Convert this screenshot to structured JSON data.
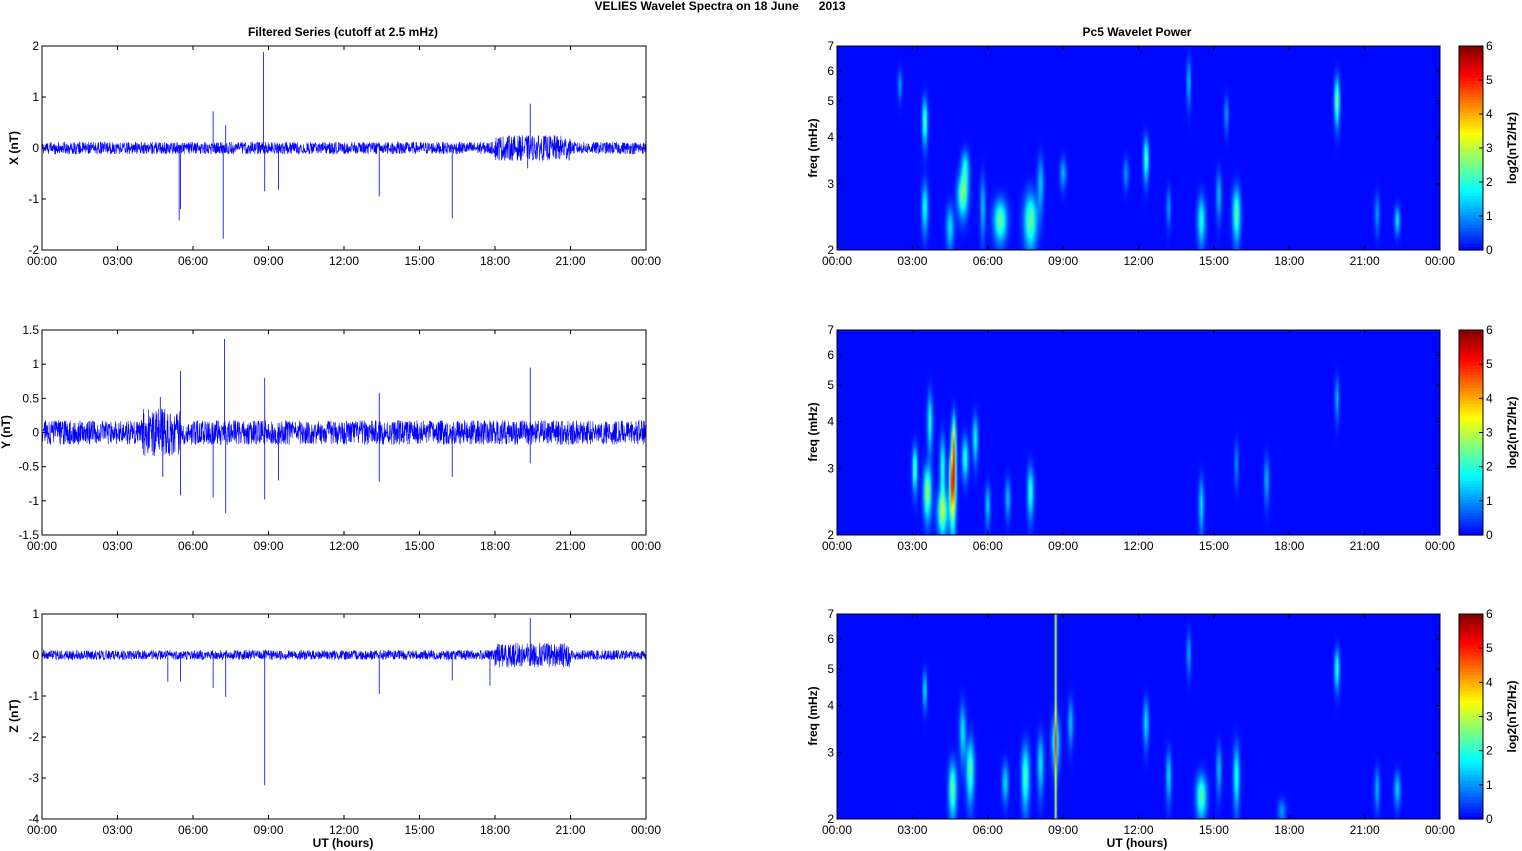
{
  "figure": {
    "title": "VELIES Wavelet Spectra on 18 June      2013"
  },
  "colors": {
    "trace": "#0000ff",
    "axis": "#000000",
    "background": "#00008f"
  },
  "chart_data": [
    {
      "type": "line",
      "title": "Filtered Series (cutoff at 2.5 mHz)",
      "xlabel": "",
      "ylabel": "X (nT)",
      "xlim": [
        "00:00",
        "24:00"
      ],
      "xticks": [
        "00:00",
        "03:00",
        "06:00",
        "09:00",
        "12:00",
        "15:00",
        "18:00",
        "21:00",
        "00:00"
      ],
      "ylim": [
        -2,
        2
      ],
      "yticks": [
        "-2",
        "-1",
        "0",
        "1",
        "2"
      ],
      "noise_amplitude": 0.12,
      "burst": {
        "from_hour": 18,
        "to_hour": 21,
        "amplitude": 0.25
      },
      "spikes": [
        [
          5.45,
          -1.42
        ],
        [
          5.5,
          -1.2
        ],
        [
          6.8,
          0.72
        ],
        [
          7.2,
          -1.78
        ],
        [
          7.3,
          0.45
        ],
        [
          8.8,
          1.88
        ],
        [
          8.85,
          -0.85
        ],
        [
          9.4,
          -0.82
        ],
        [
          13.4,
          -0.95
        ],
        [
          16.3,
          -1.38
        ],
        [
          19.4,
          0.87
        ],
        [
          19.3,
          -0.4
        ]
      ]
    },
    {
      "type": "line",
      "title": "",
      "xlabel": "",
      "ylabel": "Y (nT)",
      "xlim": [
        "00:00",
        "24:00"
      ],
      "xticks": [
        "00:00",
        "03:00",
        "06:00",
        "09:00",
        "12:00",
        "15:00",
        "18:00",
        "21:00",
        "00:00"
      ],
      "ylim": [
        -1.5,
        1.5
      ],
      "yticks": [
        "-1.5",
        "-1",
        "-0.5",
        "0",
        "0.5",
        "1",
        "1.5"
      ],
      "noise_amplitude": 0.18,
      "burst": {
        "from_hour": 4.0,
        "to_hour": 5.5,
        "amplitude": 0.35
      },
      "spikes": [
        [
          4.7,
          0.52
        ],
        [
          4.8,
          -0.65
        ],
        [
          5.5,
          0.9
        ],
        [
          5.5,
          -0.92
        ],
        [
          6.8,
          -0.95
        ],
        [
          7.25,
          1.37
        ],
        [
          7.3,
          -1.18
        ],
        [
          8.85,
          0.8
        ],
        [
          8.85,
          -0.98
        ],
        [
          9.4,
          -0.7
        ],
        [
          13.4,
          0.58
        ],
        [
          13.4,
          -0.72
        ],
        [
          16.3,
          -0.65
        ],
        [
          19.4,
          0.95
        ],
        [
          19.4,
          -0.45
        ]
      ]
    },
    {
      "type": "line",
      "title": "",
      "xlabel": "UT (hours)",
      "ylabel": "Z (nT)",
      "xlim": [
        "00:00",
        "24:00"
      ],
      "xticks": [
        "00:00",
        "03:00",
        "06:00",
        "09:00",
        "12:00",
        "15:00",
        "18:00",
        "21:00",
        "00:00"
      ],
      "ylim": [
        -4,
        1
      ],
      "yticks": [
        "-4",
        "-3",
        "-2",
        "-1",
        "0",
        "1"
      ],
      "noise_amplitude": 0.12,
      "burst": {
        "from_hour": 18,
        "to_hour": 21,
        "amplitude": 0.3
      },
      "spikes": [
        [
          5.0,
          -0.65
        ],
        [
          5.5,
          -0.65
        ],
        [
          6.8,
          -0.8
        ],
        [
          7.3,
          -1.02
        ],
        [
          8.85,
          -3.18
        ],
        [
          13.4,
          -0.95
        ],
        [
          16.3,
          -0.62
        ],
        [
          17.8,
          -0.75
        ],
        [
          19.4,
          0.9
        ]
      ]
    },
    {
      "type": "heatmap",
      "title": "Pc5 Wavelet Power",
      "xlabel": "",
      "ylabel": "freq (mHz)",
      "colorbar_label": "log2(nT2/Hz)",
      "colorbar_ticks": [
        "0",
        "1",
        "2",
        "3",
        "4",
        "5",
        "6"
      ],
      "clim": [
        0,
        6
      ],
      "xlim": [
        "00:00",
        "24:00"
      ],
      "xticks": [
        "00:00",
        "03:00",
        "06:00",
        "09:00",
        "12:00",
        "15:00",
        "18:00",
        "21:00",
        "00:00"
      ],
      "ylim_mhz": [
        2,
        7
      ],
      "yscale": "log",
      "yticks": [
        "2",
        "3",
        "4",
        "5",
        "6",
        "7"
      ],
      "blobs": [
        {
          "t": 2.5,
          "f": 5.5,
          "dt": 0.08,
          "df": 0.5,
          "p": 1.1
        },
        {
          "t": 3.5,
          "f": 4.4,
          "dt": 0.1,
          "df": 0.6,
          "p": 2.3
        },
        {
          "t": 3.5,
          "f": 2.6,
          "dt": 0.12,
          "df": 0.4,
          "p": 1.8
        },
        {
          "t": 4.5,
          "f": 2.3,
          "dt": 0.15,
          "df": 0.3,
          "p": 1.5
        },
        {
          "t": 5.0,
          "f": 2.8,
          "dt": 0.2,
          "df": 0.35,
          "p": 2.5
        },
        {
          "t": 5.1,
          "f": 3.3,
          "dt": 0.15,
          "df": 0.35,
          "p": 1.8
        },
        {
          "t": 5.8,
          "f": 2.6,
          "dt": 0.1,
          "df": 0.5,
          "p": 1.3
        },
        {
          "t": 6.5,
          "f": 2.4,
          "dt": 0.25,
          "df": 0.3,
          "p": 2.4
        },
        {
          "t": 7.7,
          "f": 2.4,
          "dt": 0.25,
          "df": 0.4,
          "p": 2.4
        },
        {
          "t": 8.1,
          "f": 3.0,
          "dt": 0.12,
          "df": 0.5,
          "p": 1.3
        },
        {
          "t": 9.0,
          "f": 3.2,
          "dt": 0.12,
          "df": 0.3,
          "p": 1.2
        },
        {
          "t": 11.5,
          "f": 3.2,
          "dt": 0.1,
          "df": 0.3,
          "p": 1.0
        },
        {
          "t": 12.3,
          "f": 3.5,
          "dt": 0.1,
          "df": 0.45,
          "p": 2.3
        },
        {
          "t": 13.2,
          "f": 2.6,
          "dt": 0.08,
          "df": 0.3,
          "p": 1.1
        },
        {
          "t": 14.0,
          "f": 5.6,
          "dt": 0.08,
          "df": 0.8,
          "p": 1.3
        },
        {
          "t": 14.5,
          "f": 2.4,
          "dt": 0.15,
          "df": 0.35,
          "p": 1.9
        },
        {
          "t": 15.2,
          "f": 2.8,
          "dt": 0.1,
          "df": 0.4,
          "p": 1.3
        },
        {
          "t": 15.5,
          "f": 4.6,
          "dt": 0.08,
          "df": 0.5,
          "p": 1.1
        },
        {
          "t": 15.9,
          "f": 2.5,
          "dt": 0.15,
          "df": 0.4,
          "p": 2.3
        },
        {
          "t": 19.9,
          "f": 5.0,
          "dt": 0.1,
          "df": 0.7,
          "p": 2.6
        },
        {
          "t": 21.5,
          "f": 2.5,
          "dt": 0.1,
          "df": 0.3,
          "p": 1.0
        },
        {
          "t": 22.3,
          "f": 2.4,
          "dt": 0.1,
          "df": 0.2,
          "p": 1.6
        }
      ]
    },
    {
      "type": "heatmap",
      "title": "",
      "xlabel": "",
      "ylabel": "freq (mHz)",
      "colorbar_label": "log2(nT2/Hz)",
      "colorbar_ticks": [
        "0",
        "1",
        "2",
        "3",
        "4",
        "5",
        "6"
      ],
      "clim": [
        0,
        6
      ],
      "xlim": [
        "00:00",
        "24:00"
      ],
      "xticks": [
        "00:00",
        "03:00",
        "06:00",
        "09:00",
        "12:00",
        "15:00",
        "18:00",
        "21:00",
        "00:00"
      ],
      "ylim_mhz": [
        2,
        7
      ],
      "yscale": "log",
      "yticks": [
        "2",
        "3",
        "4",
        "5",
        "6",
        "7"
      ],
      "blobs": [
        {
          "t": 3.1,
          "f": 3.0,
          "dt": 0.1,
          "df": 0.4,
          "p": 2.3
        },
        {
          "t": 3.6,
          "f": 2.6,
          "dt": 0.15,
          "df": 0.4,
          "p": 2.8
        },
        {
          "t": 3.7,
          "f": 4.0,
          "dt": 0.1,
          "df": 0.7,
          "p": 1.9
        },
        {
          "t": 4.2,
          "f": 2.3,
          "dt": 0.2,
          "df": 0.3,
          "p": 2.6
        },
        {
          "t": 4.2,
          "f": 3.0,
          "dt": 0.1,
          "df": 0.6,
          "p": 2.0
        },
        {
          "t": 4.6,
          "f": 2.7,
          "dt": 0.12,
          "df": 0.6,
          "p": 4.9
        },
        {
          "t": 4.65,
          "f": 3.5,
          "dt": 0.08,
          "df": 0.6,
          "p": 3.6
        },
        {
          "t": 5.1,
          "f": 3.2,
          "dt": 0.12,
          "df": 0.4,
          "p": 2.0
        },
        {
          "t": 5.5,
          "f": 3.6,
          "dt": 0.1,
          "df": 0.5,
          "p": 1.8
        },
        {
          "t": 6.0,
          "f": 2.4,
          "dt": 0.1,
          "df": 0.3,
          "p": 1.4
        },
        {
          "t": 6.8,
          "f": 2.5,
          "dt": 0.1,
          "df": 0.3,
          "p": 1.3
        },
        {
          "t": 7.7,
          "f": 2.6,
          "dt": 0.12,
          "df": 0.4,
          "p": 2.0
        },
        {
          "t": 14.5,
          "f": 2.4,
          "dt": 0.1,
          "df": 0.4,
          "p": 1.5
        },
        {
          "t": 15.9,
          "f": 3.1,
          "dt": 0.08,
          "df": 0.4,
          "p": 1.0
        },
        {
          "t": 17.1,
          "f": 2.8,
          "dt": 0.1,
          "df": 0.4,
          "p": 1.2
        },
        {
          "t": 19.9,
          "f": 4.6,
          "dt": 0.08,
          "df": 0.6,
          "p": 1.2
        }
      ]
    },
    {
      "type": "heatmap",
      "title": "",
      "xlabel": "UT (hours)",
      "ylabel": "freq (mHz)",
      "colorbar_label": "log2(nT2/Hz)",
      "colorbar_ticks": [
        "0",
        "1",
        "2",
        "3",
        "4",
        "5",
        "6"
      ],
      "clim": [
        0,
        6
      ],
      "xlim": [
        "00:00",
        "24:00"
      ],
      "xticks": [
        "00:00",
        "03:00",
        "06:00",
        "09:00",
        "12:00",
        "15:00",
        "18:00",
        "21:00",
        "00:00"
      ],
      "ylim_mhz": [
        2,
        7
      ],
      "yscale": "log",
      "yticks": [
        "2",
        "3",
        "4",
        "5",
        "6",
        "7"
      ],
      "blobs": [
        {
          "t": 3.5,
          "f": 4.4,
          "dt": 0.08,
          "df": 0.5,
          "p": 1.6
        },
        {
          "t": 4.6,
          "f": 2.4,
          "dt": 0.15,
          "df": 0.4,
          "p": 2.4
        },
        {
          "t": 5.0,
          "f": 3.4,
          "dt": 0.12,
          "df": 0.6,
          "p": 1.6
        },
        {
          "t": 5.3,
          "f": 2.7,
          "dt": 0.15,
          "df": 0.5,
          "p": 2.3
        },
        {
          "t": 6.7,
          "f": 2.5,
          "dt": 0.12,
          "df": 0.3,
          "p": 1.5
        },
        {
          "t": 7.5,
          "f": 2.6,
          "dt": 0.15,
          "df": 0.5,
          "p": 2.2
        },
        {
          "t": 8.1,
          "f": 2.8,
          "dt": 0.12,
          "df": 0.5,
          "p": 1.6
        },
        {
          "t": 8.7,
          "f": 3.2,
          "dt": 0.15,
          "df": 0.5,
          "p": 2.0
        },
        {
          "t": 9.3,
          "f": 3.6,
          "dt": 0.1,
          "df": 0.5,
          "p": 1.3
        },
        {
          "t": 12.3,
          "f": 3.6,
          "dt": 0.1,
          "df": 0.5,
          "p": 1.6
        },
        {
          "t": 13.2,
          "f": 2.6,
          "dt": 0.1,
          "df": 0.4,
          "p": 1.5
        },
        {
          "t": 14.0,
          "f": 5.5,
          "dt": 0.08,
          "df": 0.7,
          "p": 1.2
        },
        {
          "t": 14.5,
          "f": 2.3,
          "dt": 0.2,
          "df": 0.3,
          "p": 2.3
        },
        {
          "t": 15.2,
          "f": 2.7,
          "dt": 0.1,
          "df": 0.4,
          "p": 1.3
        },
        {
          "t": 15.9,
          "f": 2.6,
          "dt": 0.12,
          "df": 0.5,
          "p": 1.9
        },
        {
          "t": 17.7,
          "f": 2.1,
          "dt": 0.15,
          "df": 0.15,
          "p": 1.0
        },
        {
          "t": 19.9,
          "f": 5.0,
          "dt": 0.1,
          "df": 0.6,
          "p": 2.0
        },
        {
          "t": 21.5,
          "f": 2.4,
          "dt": 0.1,
          "df": 0.3,
          "p": 1.2
        },
        {
          "t": 22.3,
          "f": 2.4,
          "dt": 0.12,
          "df": 0.25,
          "p": 1.4
        }
      ],
      "streak": {
        "t": 8.7,
        "p": 2.8
      }
    }
  ]
}
